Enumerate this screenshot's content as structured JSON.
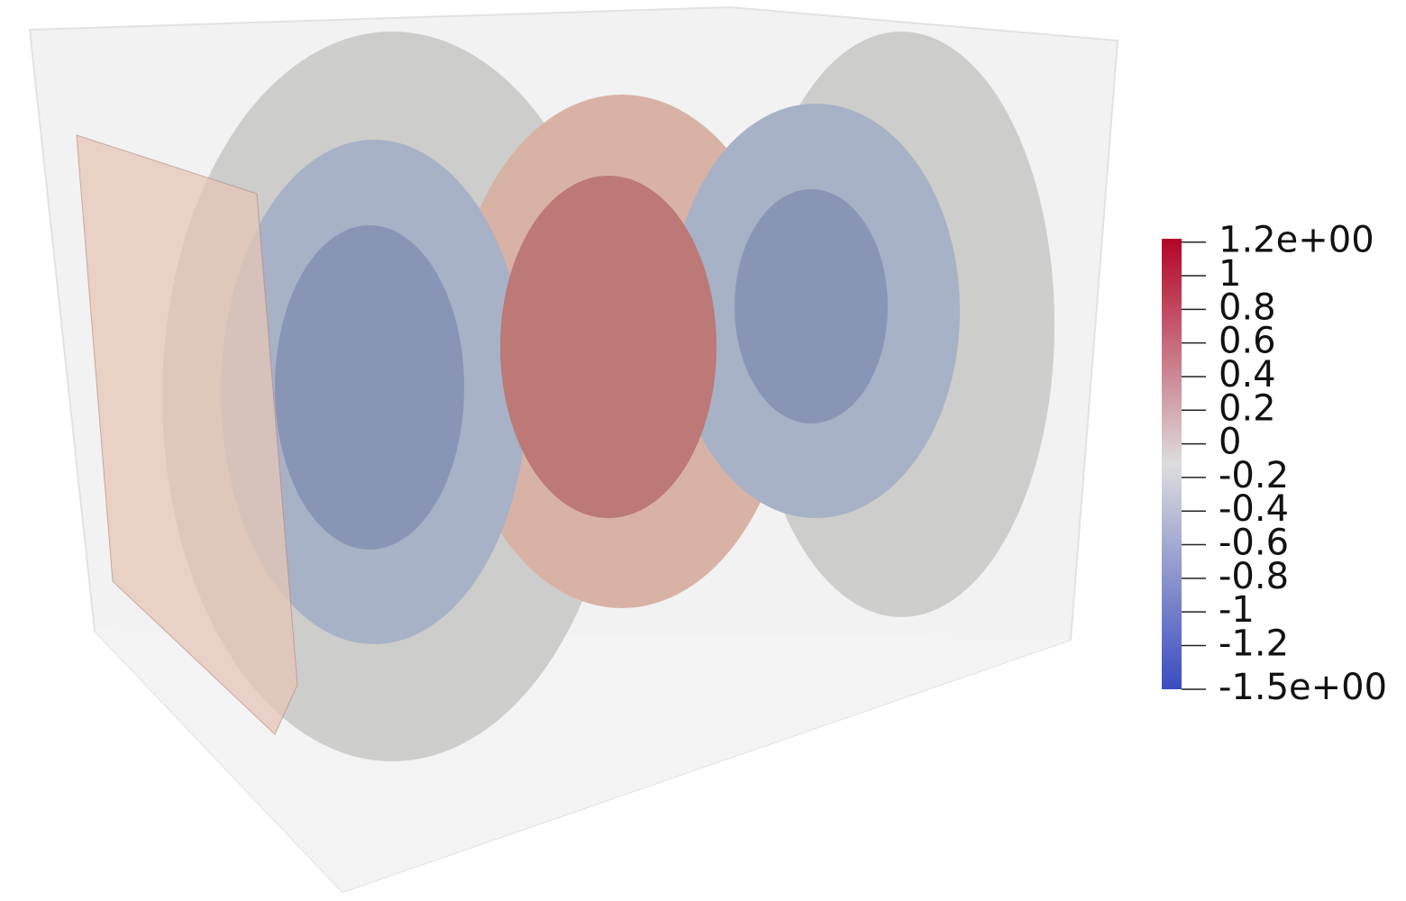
{
  "colorbar": {
    "range": [
      -1.46,
      1.22
    ],
    "colormap": [
      "#3b4cc0",
      "#dddddd",
      "#b40426"
    ],
    "ticks": [
      {
        "value": 1.2,
        "label": "1.2e+00"
      },
      1,
      0.8,
      0.6,
      0.4,
      0.2,
      0,
      -0.2,
      -0.4,
      -0.6,
      -0.8,
      -1,
      -1.2,
      {
        "value": -1.5,
        "label": "-1.5e+00"
      }
    ]
  }
}
